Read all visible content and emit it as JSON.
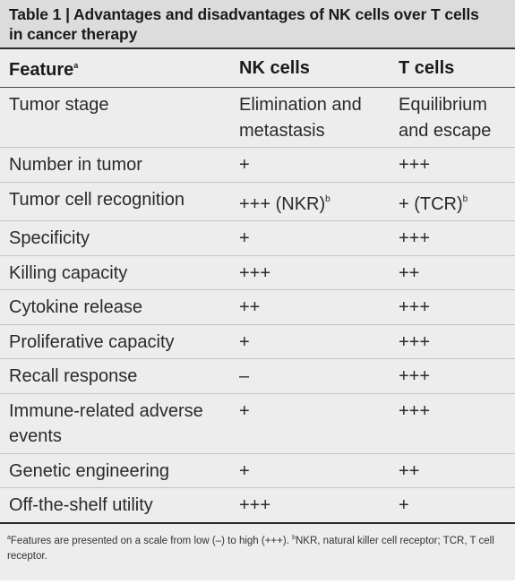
{
  "caption": {
    "line1": "Table 1 | Advantages and disadvantages of NK cells over T cells",
    "line2": "in cancer therapy"
  },
  "header": {
    "feature": "Feature",
    "feature_sup": "a",
    "nk": "NK cells",
    "t": "T cells"
  },
  "rows": [
    {
      "feature": "Tumor stage",
      "nk": "Elimination and metastasis",
      "nk_sup": "",
      "t": "Equilibrium and escape",
      "t_sup": ""
    },
    {
      "feature": "Number in tumor",
      "nk": "+",
      "nk_sup": "",
      "t": "+++",
      "t_sup": ""
    },
    {
      "feature": "Tumor cell recognition",
      "nk": "+++ (NKR)",
      "nk_sup": "b",
      "t": "+ (TCR)",
      "t_sup": "b"
    },
    {
      "feature": "Specificity",
      "nk": "+",
      "nk_sup": "",
      "t": "+++",
      "t_sup": ""
    },
    {
      "feature": "Killing capacity",
      "nk": "+++",
      "nk_sup": "",
      "t": "++",
      "t_sup": ""
    },
    {
      "feature": "Cytokine release",
      "nk": "++",
      "nk_sup": "",
      "t": "+++",
      "t_sup": ""
    },
    {
      "feature": "Proliferative capacity",
      "nk": "+",
      "nk_sup": "",
      "t": "+++",
      "t_sup": ""
    },
    {
      "feature": "Recall response",
      "nk": "–",
      "nk_sup": "",
      "t": "+++",
      "t_sup": ""
    },
    {
      "feature": "Immune-related adverse events",
      "nk": "+",
      "nk_sup": "",
      "t": "+++",
      "t_sup": ""
    },
    {
      "feature": "Genetic engineering",
      "nk": "+",
      "nk_sup": "",
      "t": "++",
      "t_sup": ""
    },
    {
      "feature": "Off-the-shelf utility",
      "nk": "+++",
      "nk_sup": "",
      "t": "+",
      "t_sup": ""
    }
  ],
  "footnote": {
    "sup_a": "a",
    "text_a": "Features are presented on a scale from low (–) to high (+++). ",
    "sup_b": "b",
    "text_b": "NKR, natural killer cell receptor; TCR, T cell receptor."
  }
}
